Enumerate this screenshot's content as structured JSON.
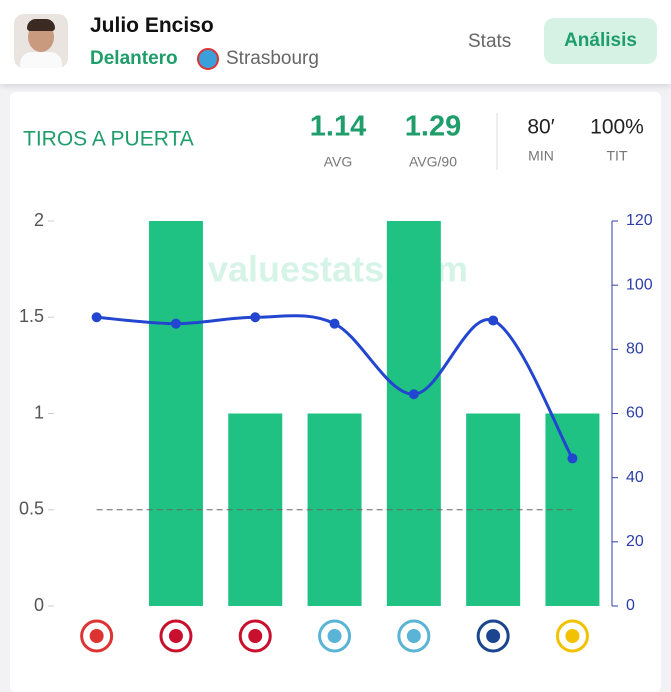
{
  "header": {
    "name": "Julio Enciso",
    "position": "Delantero",
    "club": "Strasbourg",
    "tabs": [
      "Stats",
      "Análisis"
    ]
  },
  "card": {
    "title": "TIROS A PUERTA",
    "stats": [
      {
        "value": "1.14",
        "label": "AVG"
      },
      {
        "value": "1.29",
        "label": "AVG/90"
      },
      {
        "value": "80′",
        "label": "MIN"
      },
      {
        "value": "100%",
        "label": "TIT"
      }
    ],
    "watermark": "valuestats.com"
  },
  "chart_data": {
    "type": "bar",
    "categories": [
      null,
      null,
      null,
      null,
      null,
      null,
      null
    ],
    "series": [
      {
        "type": "bar",
        "color": "#20c283",
        "values": [
          0,
          2,
          1,
          1,
          2,
          1,
          1
        ]
      },
      {
        "type": "line",
        "color": "#2346d0",
        "axis": "y2",
        "values": [
          90,
          88,
          90,
          88,
          66,
          89,
          46
        ]
      }
    ],
    "ylim": [
      0,
      2
    ],
    "yticks": [
      0,
      0.5,
      1,
      1.5,
      2
    ],
    "y2lim": [
      0,
      120
    ],
    "y2ticks": [
      0,
      20,
      40,
      60,
      80,
      100,
      120
    ],
    "reference_line": 0.5
  }
}
